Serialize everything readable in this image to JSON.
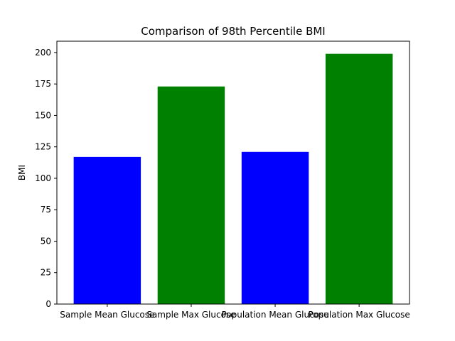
{
  "chart_data": {
    "type": "bar",
    "title": "Comparison of 98th Percentile BMI",
    "xlabel": "",
    "ylabel": "BMI",
    "categories": [
      "Sample Mean Glucose",
      "Sample Max Glucose",
      "Population Mean Glucose",
      "Population Max Glucose"
    ],
    "values": [
      117,
      173,
      121,
      199
    ],
    "colors": [
      "#0000ff",
      "#008000",
      "#0000ff",
      "#008000"
    ],
    "ylim": [
      0,
      209
    ],
    "yticks": [
      0,
      25,
      50,
      75,
      100,
      125,
      150,
      175,
      200
    ],
    "grid": false
  }
}
